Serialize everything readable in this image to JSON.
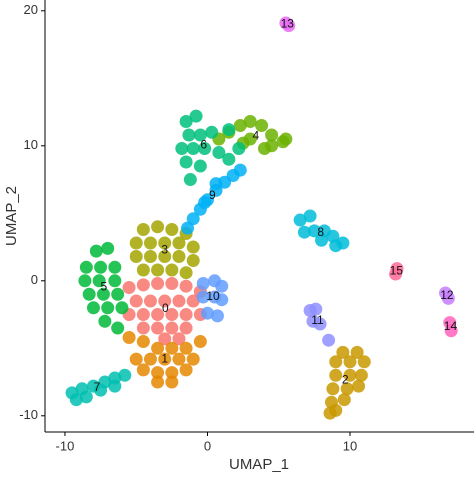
{
  "chart_data": {
    "type": "scatter",
    "xlabel": "UMAP_1",
    "ylabel": "UMAP_2",
    "xlim": [
      -11.4,
      18.7
    ],
    "ylim": [
      -11.2,
      20.8
    ],
    "xticks": [
      -10,
      0,
      10
    ],
    "yticks": [
      -10,
      0,
      10,
      20
    ],
    "grid": false,
    "series": [
      {
        "name": "0",
        "color": "#F8766D",
        "x": [
          -5.5,
          -4.5,
          -3.5,
          -2.5,
          -1.5,
          -0.5,
          -5,
          -4,
          -3,
          -2,
          -1,
          -5.5,
          -4.5,
          -3.5,
          -2.5,
          -1.5,
          -0.5,
          -4.5,
          -3.5,
          -2.5,
          -1.5,
          -3,
          -2
        ],
        "y": [
          -0.5,
          -0.3,
          -0.2,
          -0.2,
          -0.4,
          -0.8,
          -1.5,
          -1.5,
          -1.5,
          -1.5,
          -1.5,
          -2.5,
          -2.5,
          -2.5,
          -2.5,
          -2.5,
          -2.5,
          -3.5,
          -3.5,
          -3.5,
          -3.5,
          -4.3,
          -4.3
        ]
      },
      {
        "name": "1",
        "color": "#E58700",
        "x": [
          -5.5,
          -4.5,
          -3.5,
          -2.5,
          -1.5,
          -0.5,
          -5,
          -4,
          -3,
          -2,
          -1,
          -4.5,
          -3.5,
          -2.5,
          -1.5,
          -3.5,
          -2.5
        ],
        "y": [
          -4.2,
          -4.5,
          -5,
          -5,
          -5,
          -4.5,
          -5.8,
          -5.8,
          -5.8,
          -5.8,
          -5.8,
          -6.6,
          -6.8,
          -6.8,
          -6.6,
          -7.5,
          -7.5
        ]
      },
      {
        "name": "2",
        "color": "#C99800",
        "x": [
          9.5,
          10.5,
          9,
          10,
          11,
          9,
          10,
          10.8,
          8.8,
          9.8,
          10.6,
          8.7,
          9.6,
          9,
          8.6
        ],
        "y": [
          -5.3,
          -5.3,
          -6,
          -6,
          -6,
          -7,
          -7,
          -7,
          -8,
          -8,
          -7.8,
          -9,
          -8.8,
          -9.6,
          -9.8
        ]
      },
      {
        "name": "3",
        "color": "#A3A500",
        "x": [
          -4.5,
          -3.5,
          -2.5,
          -1.5,
          -5,
          -4,
          -3,
          -2,
          -1,
          -5,
          -4,
          -3,
          -2,
          -1,
          -4.5,
          -3.5,
          -2.5,
          -1.5
        ],
        "y": [
          3.8,
          4,
          3.8,
          3.5,
          2.8,
          2.8,
          2.8,
          2.8,
          2.5,
          1.8,
          1.8,
          1.8,
          1.8,
          1.5,
          0.8,
          0.8,
          0.8,
          0.6
        ]
      },
      {
        "name": "4",
        "color": "#6BB100",
        "x": [
          0.8,
          1.5,
          2.3,
          3,
          3.8,
          4.5,
          5.3,
          3,
          4,
          2.5,
          4.5,
          5.5
        ],
        "y": [
          10.5,
          11,
          11.5,
          11.8,
          11.5,
          10.8,
          10.3,
          10.5,
          9.8,
          10.2,
          10,
          10.5
        ]
      },
      {
        "name": "5",
        "color": "#00BA38",
        "x": [
          -7.8,
          -7,
          -8.5,
          -7.5,
          -6.5,
          -8.6,
          -7.6,
          -6.5,
          -8.3,
          -7.3,
          -6.3,
          -8,
          -7,
          -6,
          -7.2,
          -6.3
        ],
        "y": [
          2.2,
          2.4,
          1,
          1,
          1,
          0,
          0,
          0,
          -1,
          -1,
          -1,
          -2,
          -2,
          -2,
          -3,
          -3.5
        ]
      },
      {
        "name": "6",
        "color": "#00BF7D",
        "x": [
          -1.5,
          -0.8,
          -1.3,
          -0.5,
          0.3,
          -1.8,
          -1,
          -0.2,
          0.8,
          -1.5,
          -0.5,
          -1.2,
          1.5,
          2.2,
          1.5
        ],
        "y": [
          11.8,
          12.2,
          10.8,
          10.8,
          11,
          9.8,
          9.8,
          9.8,
          9.5,
          8.8,
          8.5,
          7.5,
          9,
          9.8,
          11.2
        ]
      },
      {
        "name": "7",
        "color": "#00C0AF",
        "x": [
          -9.5,
          -8.8,
          -8,
          -7.2,
          -6.5,
          -5.8,
          -9.2,
          -8.5,
          -7.5,
          -6.5
        ],
        "y": [
          -8.3,
          -8,
          -7.8,
          -7.5,
          -7.2,
          -7,
          -8.8,
          -8.6,
          -8.1,
          -7.8
        ]
      },
      {
        "name": "8",
        "color": "#00BCD8",
        "x": [
          6.5,
          7.2,
          6.8,
          7.5,
          8.2,
          8.8,
          9.5,
          8,
          9
        ],
        "y": [
          4.5,
          4.8,
          3.6,
          3.7,
          3.7,
          3.3,
          2.8,
          3,
          2.6
        ]
      },
      {
        "name": "9",
        "color": "#00B0F6",
        "x": [
          2.3,
          1.8,
          1.2,
          0.6,
          0,
          -0.5,
          -1,
          -1.4,
          0.6,
          -0.2
        ],
        "y": [
          8.2,
          7.8,
          7.3,
          6.7,
          6,
          5.3,
          4.6,
          3.9,
          7.2,
          5.8
        ]
      },
      {
        "name": "10",
        "color": "#619CFF",
        "x": [
          -0.3,
          0.5,
          1,
          -0.3,
          0.5,
          1,
          0,
          0.7
        ],
        "y": [
          -0.2,
          0,
          -0.4,
          -1.2,
          -1.2,
          -1.4,
          -2.4,
          -2.6
        ]
      },
      {
        "name": "11",
        "color": "#8F8FFF",
        "x": [
          7.2,
          7.6,
          7.4,
          7.9,
          8.5
        ],
        "y": [
          -2.2,
          -2.1,
          -3,
          -3.2,
          -4.4
        ]
      },
      {
        "name": "12",
        "color": "#C77CFF",
        "x": [
          16.7,
          16.9
        ],
        "y": [
          -0.9,
          -1.3
        ]
      },
      {
        "name": "13",
        "color": "#E76BF3",
        "x": [
          5.5,
          5.7
        ],
        "y": [
          19.1,
          18.9
        ]
      },
      {
        "name": "14",
        "color": "#FF62BC",
        "x": [
          17,
          17.1
        ],
        "y": [
          -3.1,
          -3.7
        ]
      },
      {
        "name": "15",
        "color": "#FF6A98",
        "x": [
          13.2,
          13.3
        ],
        "y": [
          0.5,
          0.9
        ]
      }
    ]
  }
}
